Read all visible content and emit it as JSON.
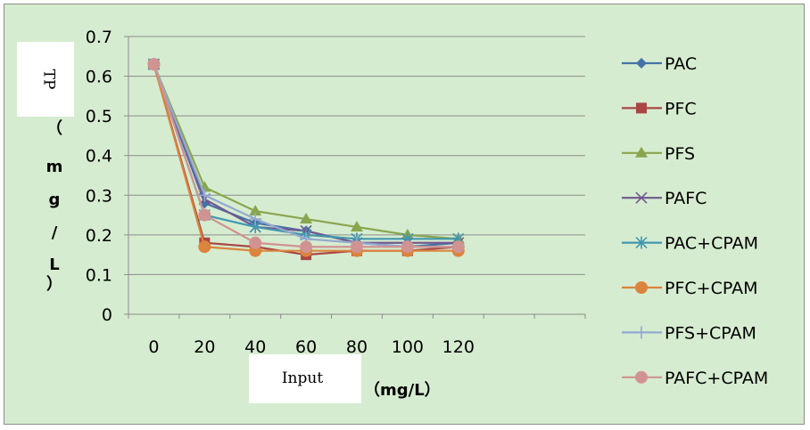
{
  "chart_data": {
    "type": "line",
    "categories": [
      "0",
      "20",
      "40",
      "60",
      "80",
      "100",
      "120"
    ],
    "ylim": [
      0,
      0.7
    ],
    "yticks": [
      "0",
      "0.1",
      "0.2",
      "0.3",
      "0.4",
      "0.5",
      "0.6",
      "0.7"
    ],
    "grid": true,
    "legend_position": "right",
    "ylabel_box": "TP",
    "ylabel_chars": [
      "（",
      "m",
      "g",
      "/",
      "L",
      "）"
    ],
    "xlabel_box": "Input",
    "xlabel_unit": "（mg/L）",
    "series": [
      {
        "name": "PAC",
        "color": "#4572a7",
        "marker": "diamond",
        "values": [
          0.63,
          0.28,
          0.23,
          0.21,
          0.18,
          0.17,
          0.18
        ]
      },
      {
        "name": "PFC",
        "color": "#aa4643",
        "marker": "square",
        "values": [
          0.63,
          0.18,
          0.17,
          0.15,
          0.16,
          0.16,
          0.17
        ]
      },
      {
        "name": "PFS",
        "color": "#89a54e",
        "marker": "triangle",
        "values": [
          0.63,
          0.32,
          0.26,
          0.24,
          0.22,
          0.2,
          0.19
        ]
      },
      {
        "name": "PAFC",
        "color": "#71588f",
        "marker": "x",
        "values": [
          0.63,
          0.29,
          0.22,
          0.21,
          0.18,
          0.18,
          0.18
        ]
      },
      {
        "name": "PAC+CPAM",
        "color": "#4198af",
        "marker": "asterisk",
        "values": [
          0.63,
          0.25,
          0.22,
          0.2,
          0.19,
          0.19,
          0.19
        ]
      },
      {
        "name": "PFC+CPAM",
        "color": "#db843d",
        "marker": "circle",
        "values": [
          0.63,
          0.17,
          0.16,
          0.16,
          0.16,
          0.16,
          0.16
        ]
      },
      {
        "name": "PFS+CPAM",
        "color": "#93a9cf",
        "marker": "plus",
        "values": [
          0.63,
          0.3,
          0.24,
          0.19,
          0.18,
          0.17,
          0.17
        ]
      },
      {
        "name": "PAFC+CPAM",
        "color": "#d19392",
        "marker": "circle",
        "values": [
          0.63,
          0.25,
          0.18,
          0.17,
          0.17,
          0.17,
          0.17
        ]
      }
    ]
  }
}
